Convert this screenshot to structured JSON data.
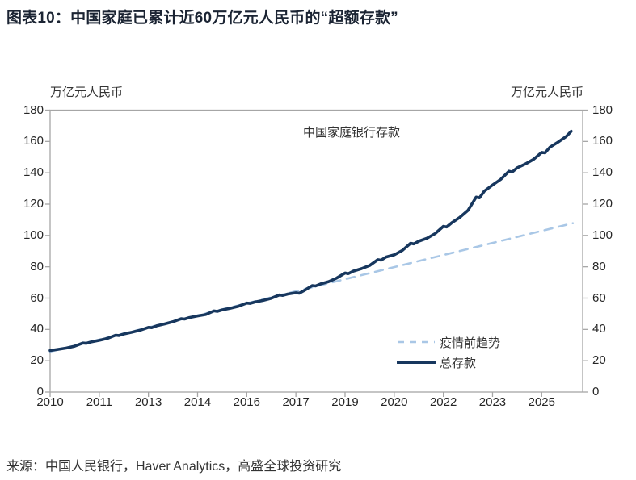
{
  "header": {
    "title": "图表10：中国家庭已累计近60万亿元人民币的“超额存款”"
  },
  "chart": {
    "left_unit_label": "万亿元人民币",
    "right_unit_label": "万亿元人民币",
    "annotation": "中国家庭银行存款"
  },
  "legend": {
    "trend_label": "疫情前趋势",
    "total_label": "总存款"
  },
  "source": {
    "text": "来源：中国人民银行，Haver Analytics，高盛全球投资研究"
  },
  "colors": {
    "total_line": "#17375e",
    "trend_line": "#a9c7e6",
    "axis": "#a6a6a6",
    "text": "#333333"
  },
  "chart_data": {
    "type": "line",
    "title": "中国家庭银行存款",
    "ylabel_left": "万亿元人民币",
    "ylabel_right": "万亿元人民币",
    "x_domain": [
      2010,
      2026.25
    ],
    "y_domain": [
      0,
      180
    ],
    "grid": false,
    "legend_position": "inside-lower-right",
    "y_ticks": [
      0,
      20,
      40,
      60,
      80,
      100,
      120,
      140,
      160,
      180
    ],
    "x_ticks": [
      {
        "pos": 2010.0,
        "label": "2010"
      },
      {
        "pos": 2011.5,
        "label": "2011"
      },
      {
        "pos": 2013.0,
        "label": "2013"
      },
      {
        "pos": 2014.5,
        "label": "2014"
      },
      {
        "pos": 2016.0,
        "label": "2016"
      },
      {
        "pos": 2017.5,
        "label": "2017"
      },
      {
        "pos": 2019.0,
        "label": "2019"
      },
      {
        "pos": 2020.5,
        "label": "2020"
      },
      {
        "pos": 2022.0,
        "label": "2022"
      },
      {
        "pos": 2023.5,
        "label": "2023"
      },
      {
        "pos": 2025.0,
        "label": "2025"
      }
    ],
    "series": [
      {
        "name": "疫情前趋势",
        "style": "dashed",
        "color": "#a9c7e6",
        "points": [
          [
            2010.0,
            25.8
          ],
          [
            2025.95,
            107.8
          ]
        ]
      },
      {
        "name": "总存款",
        "style": "solid",
        "color": "#17375e",
        "points": [
          [
            2010.0,
            26.5
          ],
          [
            2010.25,
            27.3
          ],
          [
            2010.5,
            28.1
          ],
          [
            2010.75,
            29.3
          ],
          [
            2011.0,
            31.3
          ],
          [
            2011.1,
            31.1
          ],
          [
            2011.25,
            32.0
          ],
          [
            2011.5,
            33.0
          ],
          [
            2011.75,
            34.3
          ],
          [
            2012.0,
            36.3
          ],
          [
            2012.1,
            36.1
          ],
          [
            2012.25,
            37.1
          ],
          [
            2012.5,
            38.2
          ],
          [
            2012.75,
            39.5
          ],
          [
            2013.0,
            41.3
          ],
          [
            2013.1,
            41.1
          ],
          [
            2013.25,
            42.3
          ],
          [
            2013.5,
            43.5
          ],
          [
            2013.75,
            44.9
          ],
          [
            2014.0,
            46.8
          ],
          [
            2014.1,
            46.6
          ],
          [
            2014.25,
            47.6
          ],
          [
            2014.5,
            48.6
          ],
          [
            2014.75,
            49.5
          ],
          [
            2015.0,
            51.8
          ],
          [
            2015.1,
            51.5
          ],
          [
            2015.25,
            52.5
          ],
          [
            2015.5,
            53.5
          ],
          [
            2015.75,
            54.8
          ],
          [
            2016.0,
            56.8
          ],
          [
            2016.1,
            56.6
          ],
          [
            2016.25,
            57.5
          ],
          [
            2016.5,
            58.5
          ],
          [
            2016.75,
            59.9
          ],
          [
            2017.0,
            62.0
          ],
          [
            2017.1,
            61.7
          ],
          [
            2017.25,
            62.6
          ],
          [
            2017.5,
            63.4
          ],
          [
            2017.6,
            63.1
          ],
          [
            2017.75,
            64.8
          ],
          [
            2018.0,
            68.0
          ],
          [
            2018.1,
            67.7
          ],
          [
            2018.25,
            69.0
          ],
          [
            2018.5,
            70.5
          ],
          [
            2018.75,
            72.8
          ],
          [
            2019.0,
            76.0
          ],
          [
            2019.1,
            75.6
          ],
          [
            2019.25,
            77.2
          ],
          [
            2019.5,
            78.8
          ],
          [
            2019.75,
            80.8
          ],
          [
            2020.0,
            84.5
          ],
          [
            2020.1,
            84.2
          ],
          [
            2020.25,
            86.2
          ],
          [
            2020.5,
            87.6
          ],
          [
            2020.75,
            90.5
          ],
          [
            2021.0,
            95.0
          ],
          [
            2021.1,
            94.6
          ],
          [
            2021.25,
            96.3
          ],
          [
            2021.5,
            98.2
          ],
          [
            2021.75,
            101.2
          ],
          [
            2022.0,
            105.8
          ],
          [
            2022.1,
            105.4
          ],
          [
            2022.25,
            108.0
          ],
          [
            2022.5,
            111.5
          ],
          [
            2022.75,
            116.0
          ],
          [
            2023.0,
            124.5
          ],
          [
            2023.1,
            124.0
          ],
          [
            2023.25,
            128.3
          ],
          [
            2023.5,
            132.2
          ],
          [
            2023.75,
            135.8
          ],
          [
            2024.0,
            141.0
          ],
          [
            2024.1,
            140.5
          ],
          [
            2024.25,
            143.2
          ],
          [
            2024.5,
            145.6
          ],
          [
            2024.75,
            148.6
          ],
          [
            2025.0,
            153.0
          ],
          [
            2025.1,
            152.7
          ],
          [
            2025.25,
            156.3
          ],
          [
            2025.5,
            159.6
          ],
          [
            2025.75,
            163.2
          ],
          [
            2025.9,
            166.5
          ]
        ]
      }
    ]
  }
}
